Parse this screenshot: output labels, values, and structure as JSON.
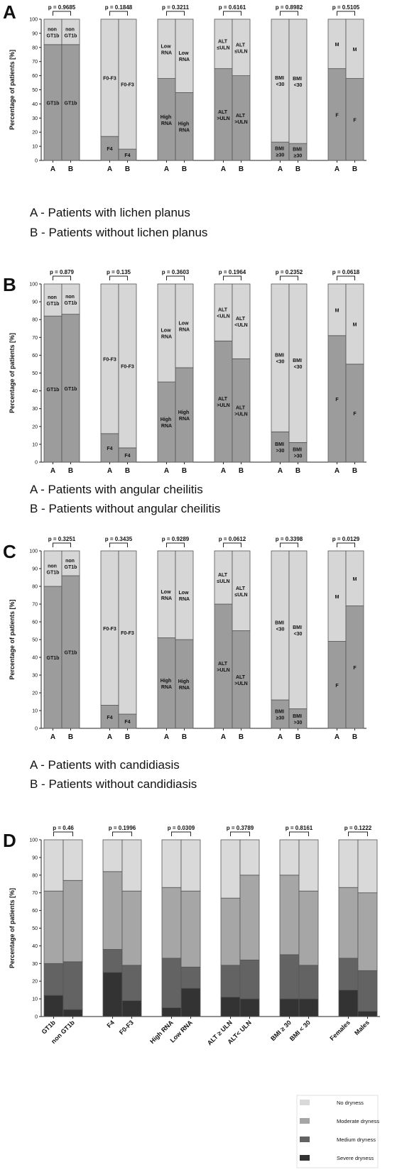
{
  "chart_data": [
    {
      "type": "bar",
      "stacked": true,
      "panel": "A",
      "ylabel": "Percentage of patients [%]",
      "ylim": [
        0,
        100
      ],
      "yticks": [
        0,
        10,
        20,
        30,
        40,
        50,
        60,
        70,
        80,
        90,
        100
      ],
      "categories": [
        "A",
        "B",
        "A",
        "B",
        "A",
        "B",
        "A",
        "B",
        "A",
        "B",
        "A",
        "B"
      ],
      "p_labels": [
        "p = 0.9685",
        "p = 0.1848",
        "p = 0.3211",
        "p = 0.6161",
        "p = 0.8982",
        "p = 0.5105"
      ],
      "series": [
        {
          "color": "#9c9c9c",
          "values": [
            82,
            82,
            17,
            8,
            58,
            48,
            65,
            60,
            13,
            12,
            65,
            58
          ],
          "segment_labels": [
            "GT1b",
            "GT1b",
            "F4",
            "F4",
            "High RNA",
            "High RNA",
            "ALT >ULN",
            "ALT >ULN",
            "BMI ≥30",
            "BMI ≥30",
            "F",
            "F"
          ]
        },
        {
          "color": "#d6d6d6",
          "values": [
            18,
            18,
            83,
            92,
            42,
            52,
            35,
            40,
            87,
            88,
            35,
            42
          ],
          "segment_labels": [
            "non GT1b",
            "non GT1b",
            "F0-F3",
            "F0-F3",
            "Low RNA",
            "Low RNA",
            "ALT ≤ULN",
            "ALT ≤ULN",
            "BMI <30",
            "BMI <30",
            "M",
            "M"
          ]
        }
      ],
      "notes": [
        "A - Patients with lichen planus",
        "B - Patients without lichen planus"
      ]
    },
    {
      "type": "bar",
      "stacked": true,
      "panel": "B",
      "ylabel": "Percentage of patients [%]",
      "ylim": [
        0,
        100
      ],
      "yticks": [
        0,
        10,
        20,
        30,
        40,
        50,
        60,
        70,
        80,
        90,
        100
      ],
      "categories": [
        "A",
        "B",
        "A",
        "B",
        "A",
        "B",
        "A",
        "B",
        "A",
        "B",
        "A",
        "B"
      ],
      "p_labels": [
        "p = 0.879",
        "p = 0.135",
        "p = 0.3603",
        "p = 0.1964",
        "p = 0.2352",
        "p = 0.0618"
      ],
      "series": [
        {
          "color": "#9c9c9c",
          "values": [
            82,
            83,
            16,
            8,
            45,
            53,
            68,
            58,
            17,
            11,
            71,
            55
          ],
          "segment_labels": [
            "GT1b",
            "GT1b",
            "F4",
            "F4",
            "High RNA",
            "High RNA",
            "ALT >ULN",
            "ALT >ULN",
            "BMI >30",
            "BMI >30",
            "F",
            "F"
          ]
        },
        {
          "color": "#d6d6d6",
          "values": [
            18,
            17,
            84,
            92,
            55,
            47,
            32,
            42,
            83,
            89,
            29,
            45
          ],
          "segment_labels": [
            "non GT1b",
            "non GT1b",
            "F0-F3",
            "F0-F3",
            "Low RNA",
            "Low RNA",
            "ALT <ULN",
            "ALT <ULN",
            "BMI <30",
            "BMI <30",
            "M",
            "M"
          ]
        }
      ],
      "notes": [
        "A - Patients with angular cheilitis",
        "B - Patients without angular cheilitis"
      ]
    },
    {
      "type": "bar",
      "stacked": true,
      "panel": "C",
      "ylabel": "Percentage of patients [%]",
      "ylim": [
        0,
        100
      ],
      "yticks": [
        0,
        10,
        20,
        30,
        40,
        50,
        60,
        70,
        80,
        90,
        100
      ],
      "categories": [
        "A",
        "B",
        "A",
        "B",
        "A",
        "B",
        "A",
        "B",
        "A",
        "B",
        "A",
        "B"
      ],
      "p_labels": [
        "p = 0.3251",
        "p = 0.3435",
        "p = 0.9289",
        "p = 0.0612",
        "p = 0.3398",
        "p = 0.0129"
      ],
      "series": [
        {
          "color": "#9c9c9c",
          "values": [
            80,
            86,
            13,
            8,
            51,
            50,
            70,
            55,
            16,
            11,
            49,
            69
          ],
          "segment_labels": [
            "GT1b",
            "GT1b",
            "F4",
            "F4",
            "High RNA",
            "High RNA",
            "ALT >ULN",
            "ALT >ULN",
            "BMI ≥30",
            "BMI >30",
            "F",
            "F"
          ]
        },
        {
          "color": "#d6d6d6",
          "values": [
            20,
            14,
            87,
            92,
            49,
            50,
            30,
            45,
            84,
            89,
            51,
            31
          ],
          "segment_labels": [
            "non GT1b",
            "non GT1b",
            "F0-F3",
            "F0-F3",
            "Low RNA",
            "Low RNA",
            "ALT ≤ULN",
            "ALT ≤ULN",
            "BMI <30",
            "BMI <30",
            "M",
            "M"
          ]
        }
      ],
      "notes": [
        "A - Patients with candidiasis",
        "B - Patients without candidiasis"
      ]
    },
    {
      "type": "bar",
      "stacked": true,
      "panel": "D",
      "ylabel": "Percentage of patients [%]",
      "ylim": [
        0,
        100
      ],
      "yticks": [
        0,
        10,
        20,
        30,
        40,
        50,
        60,
        70,
        80,
        90,
        100
      ],
      "categories": [
        "GT1b",
        "non GT1b",
        "F4",
        "F0-F3",
        "High RNA",
        "Low RNA",
        "ALT ≥ ULN",
        "ALT< ULN",
        "BMI ≥ 30",
        "BMI < 30",
        "Females",
        "Males"
      ],
      "p_labels": [
        "p = 0.46",
        "p = 0.1996",
        "p = 0.0309",
        "p = 0.3789",
        "p = 0.8161",
        "p = 0.1222"
      ],
      "series": [
        {
          "name": "Severe dryness",
          "color": "#333333",
          "values": [
            12,
            4,
            25,
            9,
            5,
            16,
            11,
            10,
            10,
            10,
            15,
            3
          ]
        },
        {
          "name": "Medium dryness",
          "color": "#636363",
          "values": [
            18,
            27,
            13,
            20,
            28,
            12,
            18,
            22,
            25,
            19,
            18,
            23
          ]
        },
        {
          "name": "Moderate dryness",
          "color": "#a6a6a6",
          "values": [
            41,
            46,
            44,
            42,
            40,
            43,
            38,
            48,
            45,
            42,
            40,
            44
          ]
        },
        {
          "name": "No dryness",
          "color": "#d9d9d9",
          "values": [
            29,
            23,
            18,
            29,
            27,
            29,
            33,
            20,
            20,
            29,
            27,
            30
          ]
        }
      ],
      "legend": "bottom right"
    }
  ]
}
